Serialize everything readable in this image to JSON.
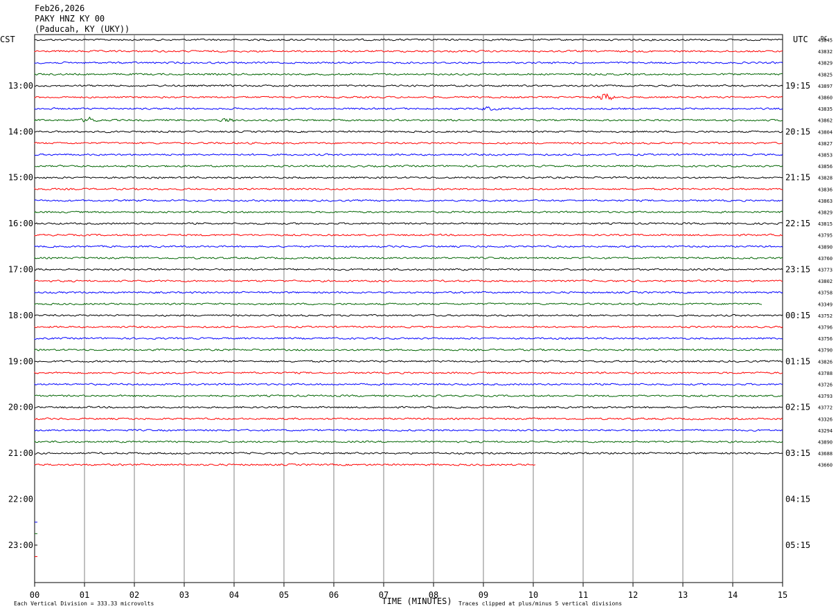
{
  "header": {
    "date": "Feb26,2026",
    "station": "PAKY HNZ KY 00",
    "location": "(Paducah, KY (UKY))"
  },
  "left_axis_label": "CST",
  "right_axis_label": "UTC",
  "dc_label": "DC",
  "footer": {
    "scale": "Each Vertical Division =  333.33 microvolts",
    "xlabel": "TIME (MINUTES)",
    "clip_note": "Traces clipped at plus/minus 5 vertical divisions"
  },
  "colors": {
    "cycle": [
      "#000000",
      "#ff0000",
      "#0000ff",
      "#006400"
    ],
    "grid": "#808080"
  },
  "chart_data": {
    "type": "line",
    "title": "",
    "xlabel": "TIME (MINUTES)",
    "x_ticks": [
      "00",
      "01",
      "02",
      "03",
      "04",
      "05",
      "06",
      "07",
      "08",
      "09",
      "10",
      "11",
      "12",
      "13",
      "14",
      "15"
    ],
    "xlim": [
      0,
      15
    ],
    "minutes_per_line": 15,
    "left_hour_labels": [
      "13:00",
      "14:00",
      "15:00",
      "16:00",
      "17:00",
      "18:00",
      "19:00",
      "20:00",
      "21:00",
      "22:00",
      "23:00"
    ],
    "right_hour_labels": [
      "19:15",
      "20:15",
      "21:15",
      "22:15",
      "23:15",
      "00:15",
      "01:15",
      "02:15",
      "03:15",
      "04:15",
      "05:15"
    ],
    "hour_label_first_line": 4,
    "total_lines": 48,
    "trace_end_minutes": [
      15,
      15,
      15,
      15,
      15,
      15,
      15,
      15,
      15,
      15,
      15,
      15,
      15,
      15,
      15,
      15,
      15,
      15,
      15,
      15,
      15,
      15,
      15,
      14.6,
      15,
      15,
      15,
      15,
      15,
      15,
      15,
      15,
      15,
      15,
      15,
      15,
      15,
      10.05
    ],
    "dc_offsets": [
      "43845",
      "43832",
      "43829",
      "43825",
      "43897",
      "43860",
      "43835",
      "43862",
      "43804",
      "43827",
      "43853",
      "43856",
      "43828",
      "43836",
      "43863",
      "43829",
      "43815",
      "43795",
      "43890",
      "43760",
      "43773",
      "43802",
      "43758",
      "43349",
      "43752",
      "43796",
      "43756",
      "43790",
      "43826",
      "43788",
      "43726",
      "43793",
      "43772",
      "43326",
      "43294",
      "43890",
      "43688",
      "43660"
    ],
    "events": [
      {
        "line": 5,
        "minute": 11.45,
        "amplitude": "large"
      },
      {
        "line": 7,
        "minute": 1.1,
        "amplitude": "medium"
      },
      {
        "line": 7,
        "minute": 3.9,
        "amplitude": "small"
      },
      {
        "line": 6,
        "minute": 9.1,
        "amplitude": "small"
      }
    ],
    "trailing_marks_lines": [
      42,
      43,
      44,
      45
    ]
  }
}
